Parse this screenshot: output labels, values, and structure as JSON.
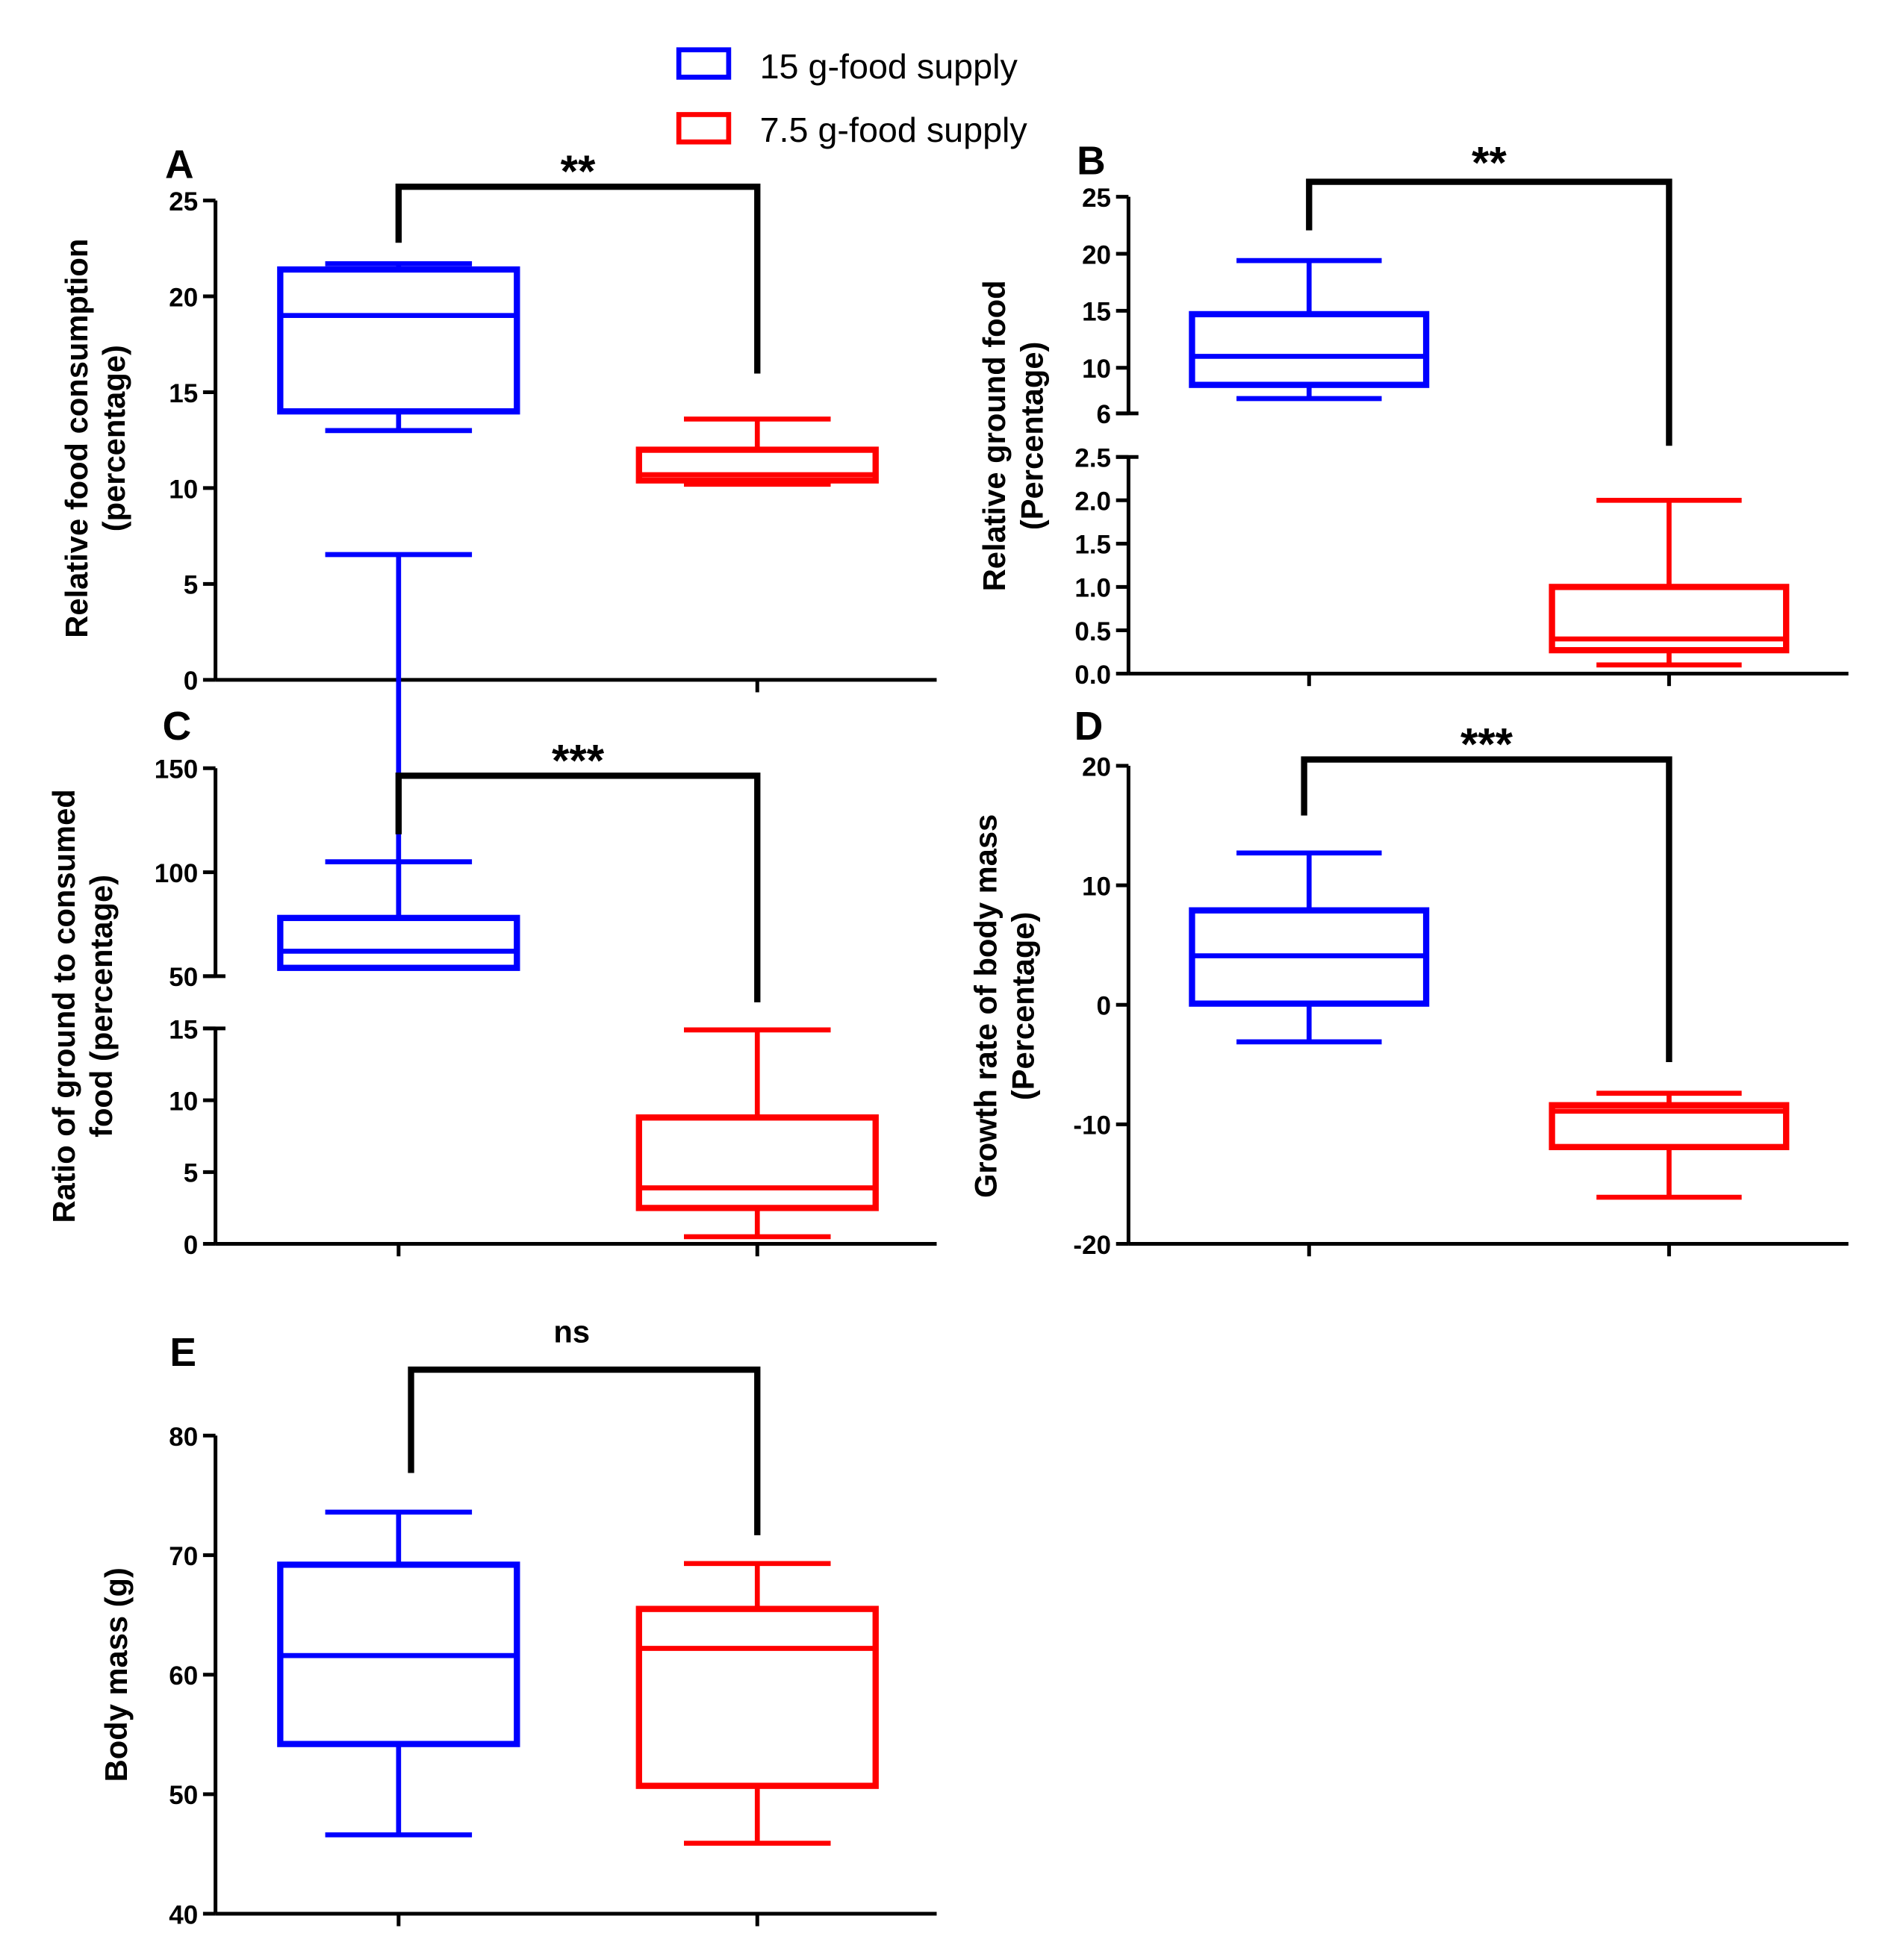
{
  "legend": {
    "items": [
      {
        "label": "15 g-food supply",
        "color": "#0000ff"
      },
      {
        "label": "7.5 g-food supply",
        "color": "#ff0000"
      }
    ],
    "placement": "top-center"
  },
  "chart_data": [
    {
      "panel": "A",
      "type": "box",
      "ylabel": [
        "Relative food consumption",
        "(percentage)"
      ],
      "ylim": [
        0,
        25
      ],
      "yticks": [
        "0",
        "5",
        "10",
        "15",
        "20",
        "25"
      ],
      "grid": false,
      "significance": "**",
      "series": [
        {
          "name": "15 g-food supply",
          "min": 13,
          "q1": 14,
          "median": 19,
          "q3": 21.4,
          "max": 21.7
        },
        {
          "name": "7.5 g-food supply",
          "min": 10.2,
          "q1": 10.4,
          "median": 10.7,
          "q3": 12,
          "max": 13.6
        }
      ]
    },
    {
      "panel": "B",
      "type": "box",
      "ylabel": [
        "Relative ground food",
        "(Percentage)"
      ],
      "broken_axis": true,
      "ylim_lower": [
        0,
        2.5
      ],
      "ylim_upper": [
        6,
        25
      ],
      "yticks_lower": [
        "0.0",
        "0.5",
        "1.0",
        "1.5",
        "2.0",
        "2.5"
      ],
      "yticks_upper": [
        "6",
        "10",
        "15",
        "20",
        "25"
      ],
      "grid": false,
      "significance": "**",
      "series": [
        {
          "name": "15 g-food supply",
          "min": 7.3,
          "q1": 8.5,
          "median": 11,
          "q3": 14.7,
          "max": 19.4
        },
        {
          "name": "7.5 g-food supply",
          "min": 0.1,
          "q1": 0.27,
          "median": 0.4,
          "q3": 1.0,
          "max": 2.0
        }
      ]
    },
    {
      "panel": "C",
      "type": "box",
      "ylabel": [
        "Ratio of ground to consumed",
        "food (percentage)"
      ],
      "broken_axis": true,
      "ylim_lower": [
        0,
        15
      ],
      "ylim_upper": [
        50,
        150
      ],
      "yticks_lower": [
        "0",
        "5",
        "10",
        "15"
      ],
      "yticks_upper": [
        "50",
        "100",
        "150"
      ],
      "grid": false,
      "significance": "***",
      "series": [
        {
          "name": "15 g-food supply",
          "min": 48,
          "q1": 54,
          "median": 62,
          "q3": 78,
          "max": 105
        },
        {
          "name": "7.5 g-food supply",
          "min": 0.5,
          "q1": 2.5,
          "median": 3.9,
          "q3": 8.8,
          "max": 14.9
        }
      ]
    },
    {
      "panel": "D",
      "type": "box",
      "ylabel": [
        "Growth rate of body mass",
        "(Percentage)"
      ],
      "ylim": [
        -20,
        20
      ],
      "yticks": [
        "-20",
        "-10",
        "0",
        "10",
        "20"
      ],
      "grid": false,
      "significance": "***",
      "series": [
        {
          "name": "15 g-food supply",
          "min": -3.1,
          "q1": 0.1,
          "median": 4.1,
          "q3": 7.9,
          "max": 12.7
        },
        {
          "name": "7.5 g-food supply",
          "min": -16.1,
          "q1": -11.9,
          "median": -8.9,
          "q3": -8.4,
          "max": -7.4
        }
      ]
    },
    {
      "panel": "E",
      "type": "box",
      "ylabel": [
        "Body mass (g)"
      ],
      "ylim": [
        40,
        80
      ],
      "yticks": [
        "40",
        "50",
        "60",
        "70",
        "80"
      ],
      "grid": false,
      "significance": "ns",
      "series": [
        {
          "name": "15 g-food supply",
          "min": 46.6,
          "q1": 54.2,
          "median": 61.6,
          "q3": 69.2,
          "max": 73.6
        },
        {
          "name": "7.5 g-food supply",
          "min": 45.9,
          "q1": 50.7,
          "median": 62.2,
          "q3": 65.5,
          "max": 69.3
        }
      ]
    }
  ]
}
